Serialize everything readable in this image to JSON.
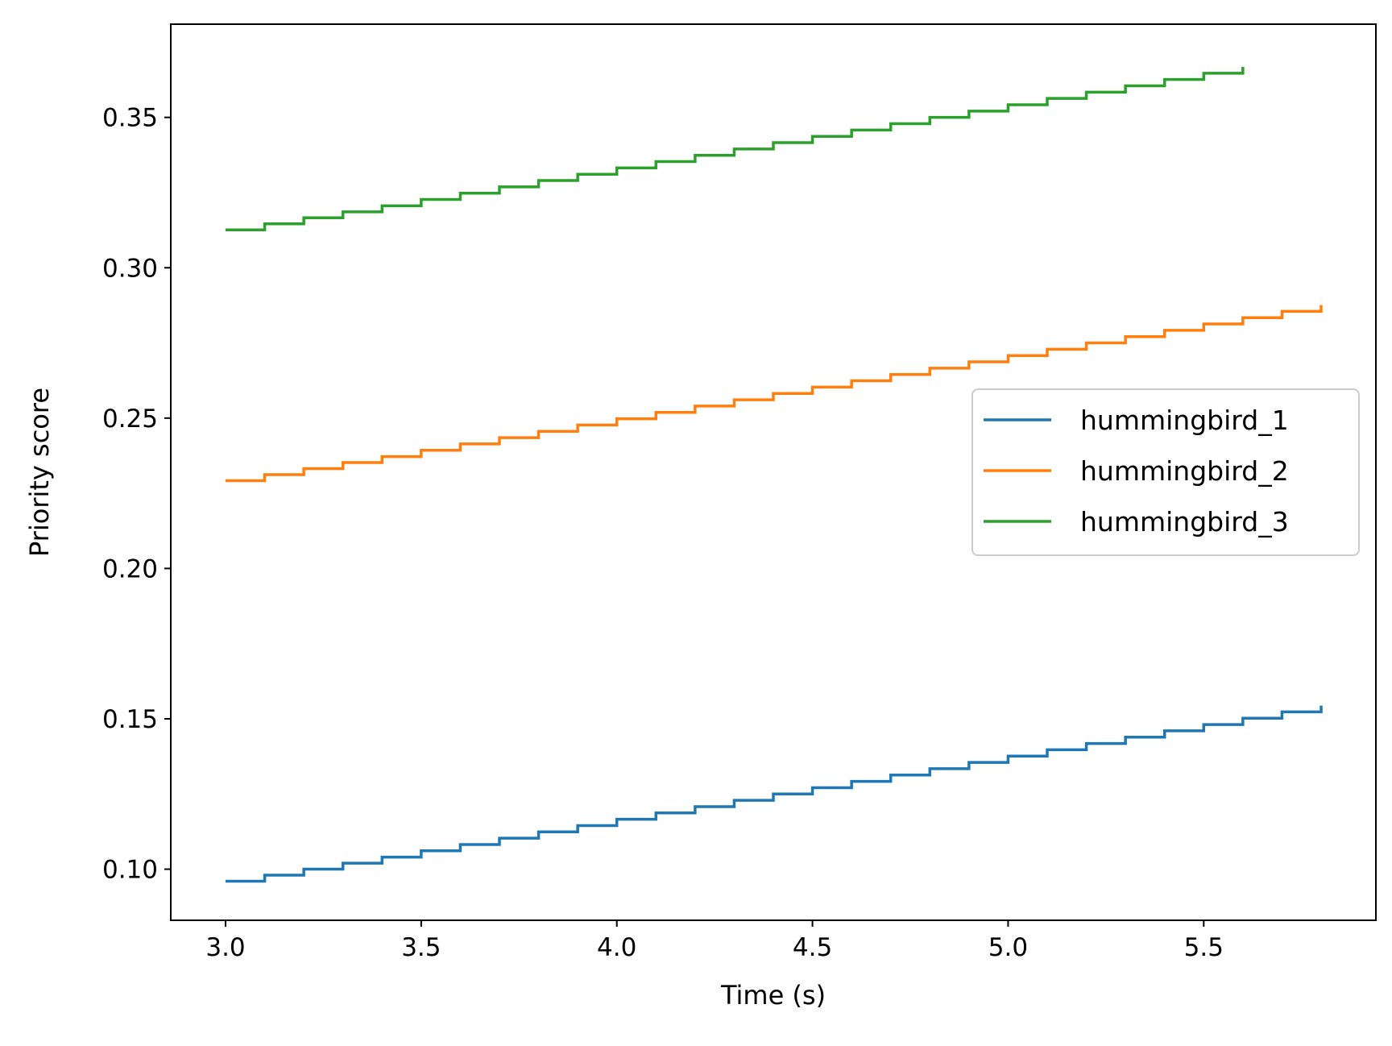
{
  "chart_data": {
    "type": "line",
    "step": true,
    "xlabel": "Time (s)",
    "ylabel": "Priority score",
    "xlim": [
      2.86,
      5.94
    ],
    "ylim": [
      0.083,
      0.381
    ],
    "xticks": [
      3.0,
      3.5,
      4.0,
      4.5,
      5.0,
      5.5
    ],
    "xtick_labels": [
      "3.0",
      "3.5",
      "4.0",
      "4.5",
      "5.0",
      "5.5"
    ],
    "yticks": [
      0.1,
      0.15,
      0.2,
      0.25,
      0.3,
      0.35
    ],
    "ytick_labels": [
      "0.10",
      "0.15",
      "0.20",
      "0.25",
      "0.30",
      "0.35"
    ],
    "grid": false,
    "legend_position": "center-right",
    "series": [
      {
        "name": "hummingbird_1",
        "color": "#1f77b4",
        "x": [
          3.0,
          3.1,
          3.2,
          3.3,
          3.4,
          3.5,
          3.6,
          3.7,
          3.8,
          3.9,
          4.0,
          4.1,
          4.2,
          4.3,
          4.4,
          4.5,
          4.6,
          4.7,
          4.8,
          4.9,
          5.0,
          5.1,
          5.2,
          5.3,
          5.4,
          5.5,
          5.6,
          5.7,
          5.8
        ],
        "y": [
          0.096,
          0.098,
          0.1,
          0.102,
          0.104,
          0.1061,
          0.1082,
          0.1103,
          0.1124,
          0.1145,
          0.1166,
          0.1187,
          0.1208,
          0.1229,
          0.125,
          0.1271,
          0.1292,
          0.1313,
          0.1334,
          0.1355,
          0.1376,
          0.1397,
          0.1418,
          0.1439,
          0.146,
          0.1481,
          0.1502,
          0.1523,
          0.1544
        ]
      },
      {
        "name": "hummingbird_2",
        "color": "#ff7f0e",
        "x": [
          3.0,
          3.1,
          3.2,
          3.3,
          3.4,
          3.5,
          3.6,
          3.7,
          3.8,
          3.9,
          4.0,
          4.1,
          4.2,
          4.3,
          4.4,
          4.5,
          4.6,
          4.7,
          4.8,
          4.9,
          5.0,
          5.1,
          5.2,
          5.3,
          5.4,
          5.5,
          5.6,
          5.7,
          5.8
        ],
        "y": [
          0.2292,
          0.2312,
          0.2332,
          0.2352,
          0.2372,
          0.2393,
          0.2414,
          0.2435,
          0.2456,
          0.2477,
          0.2498,
          0.2519,
          0.254,
          0.2561,
          0.2582,
          0.2603,
          0.2624,
          0.2645,
          0.2666,
          0.2687,
          0.2708,
          0.2729,
          0.275,
          0.2771,
          0.2792,
          0.2813,
          0.2834,
          0.2855,
          0.2876
        ]
      },
      {
        "name": "hummingbird_3",
        "color": "#2ca02c",
        "x": [
          3.0,
          3.1,
          3.2,
          3.3,
          3.4,
          3.5,
          3.6,
          3.7,
          3.8,
          3.9,
          4.0,
          4.1,
          4.2,
          4.3,
          4.4,
          4.5,
          4.6,
          4.7,
          4.8,
          4.9,
          5.0,
          5.1,
          5.2,
          5.3,
          5.4,
          5.5,
          5.6
        ],
        "y": [
          0.3126,
          0.3146,
          0.3166,
          0.3186,
          0.3206,
          0.3227,
          0.3248,
          0.3269,
          0.329,
          0.3311,
          0.3332,
          0.3353,
          0.3374,
          0.3395,
          0.3416,
          0.3437,
          0.3458,
          0.3479,
          0.35,
          0.3521,
          0.3542,
          0.3563,
          0.3584,
          0.3605,
          0.3626,
          0.3647,
          0.3668
        ]
      }
    ]
  }
}
